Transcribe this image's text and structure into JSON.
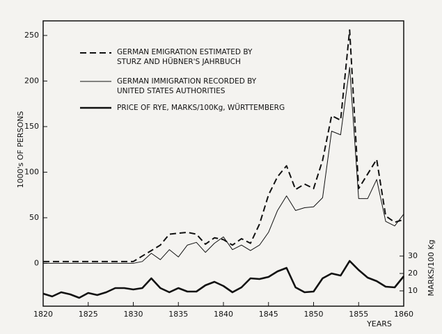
{
  "chart_data": {
    "type": "line",
    "xlabel": "YEARS",
    "ylabel": "1000's OF PERSONS",
    "y2label": "MARKS/100 Kg",
    "x": [
      1820,
      1821,
      1822,
      1823,
      1824,
      1825,
      1826,
      1827,
      1828,
      1829,
      1830,
      1831,
      1832,
      1833,
      1834,
      1835,
      1836,
      1837,
      1838,
      1839,
      1840,
      1841,
      1842,
      1843,
      1844,
      1845,
      1846,
      1847,
      1848,
      1849,
      1850,
      1851,
      1852,
      1853,
      1854,
      1855,
      1856,
      1857,
      1858,
      1859,
      1860
    ],
    "xlim": [
      1820,
      1860
    ],
    "xticks": [
      1820,
      1825,
      1830,
      1835,
      1840,
      1845,
      1850,
      1855,
      1860
    ],
    "ylim": [
      -47,
      266
    ],
    "yticks": [
      0,
      50,
      100,
      150,
      200,
      250
    ],
    "y2lim": [
      1.2,
      165.2
    ],
    "y2ticks": [
      10,
      20,
      30
    ],
    "series": [
      {
        "name": "GERMAN EMIGRATION ESTIMATED BY\nSTURZ AND HÜBNER'S JAHRBUCH",
        "color": "#111111",
        "style": "dashed",
        "values": [
          2,
          2,
          2,
          2,
          2,
          2,
          2,
          2,
          2,
          2,
          2,
          8,
          14,
          20,
          32,
          33,
          34,
          32,
          21,
          28,
          26,
          20,
          27,
          22,
          43,
          75,
          95,
          107,
          81,
          87,
          82,
          113,
          162,
          157,
          256,
          82,
          98,
          114,
          52,
          45,
          48
        ]
      },
      {
        "name": "GERMAN IMMIGRATION RECORDED BY\nUNITED STATES AUTHORITIES",
        "color": "#111111",
        "style": "solid",
        "values": [
          0,
          0,
          0,
          0,
          0,
          0,
          0,
          0,
          0,
          0,
          0,
          2,
          11,
          4,
          15,
          7,
          20,
          23,
          12,
          22,
          29,
          15,
          20,
          14,
          20,
          34,
          58,
          74,
          58,
          61,
          62,
          72,
          145,
          141,
          215,
          71,
          71,
          92,
          46,
          41,
          54
        ]
      },
      {
        "name": "PRICE OF RYE, MARKS/100Kg, WÜRTTEMBERG",
        "color": "#111111",
        "style": "thick",
        "axis": "y2",
        "values": [
          8.4,
          6.8,
          9.2,
          8,
          6,
          8.8,
          7.6,
          9.2,
          11.6,
          11.6,
          10.8,
          11.6,
          17.2,
          11.6,
          9.2,
          11.6,
          9.6,
          9.6,
          13.2,
          15.2,
          12.8,
          9.2,
          12,
          17.2,
          16.8,
          18,
          21.2,
          23.2,
          12,
          9.2,
          9.6,
          17.2,
          20,
          18.8,
          27.2,
          22,
          17.6,
          15.6,
          12.4,
          12,
          18.4
        ]
      }
    ]
  }
}
